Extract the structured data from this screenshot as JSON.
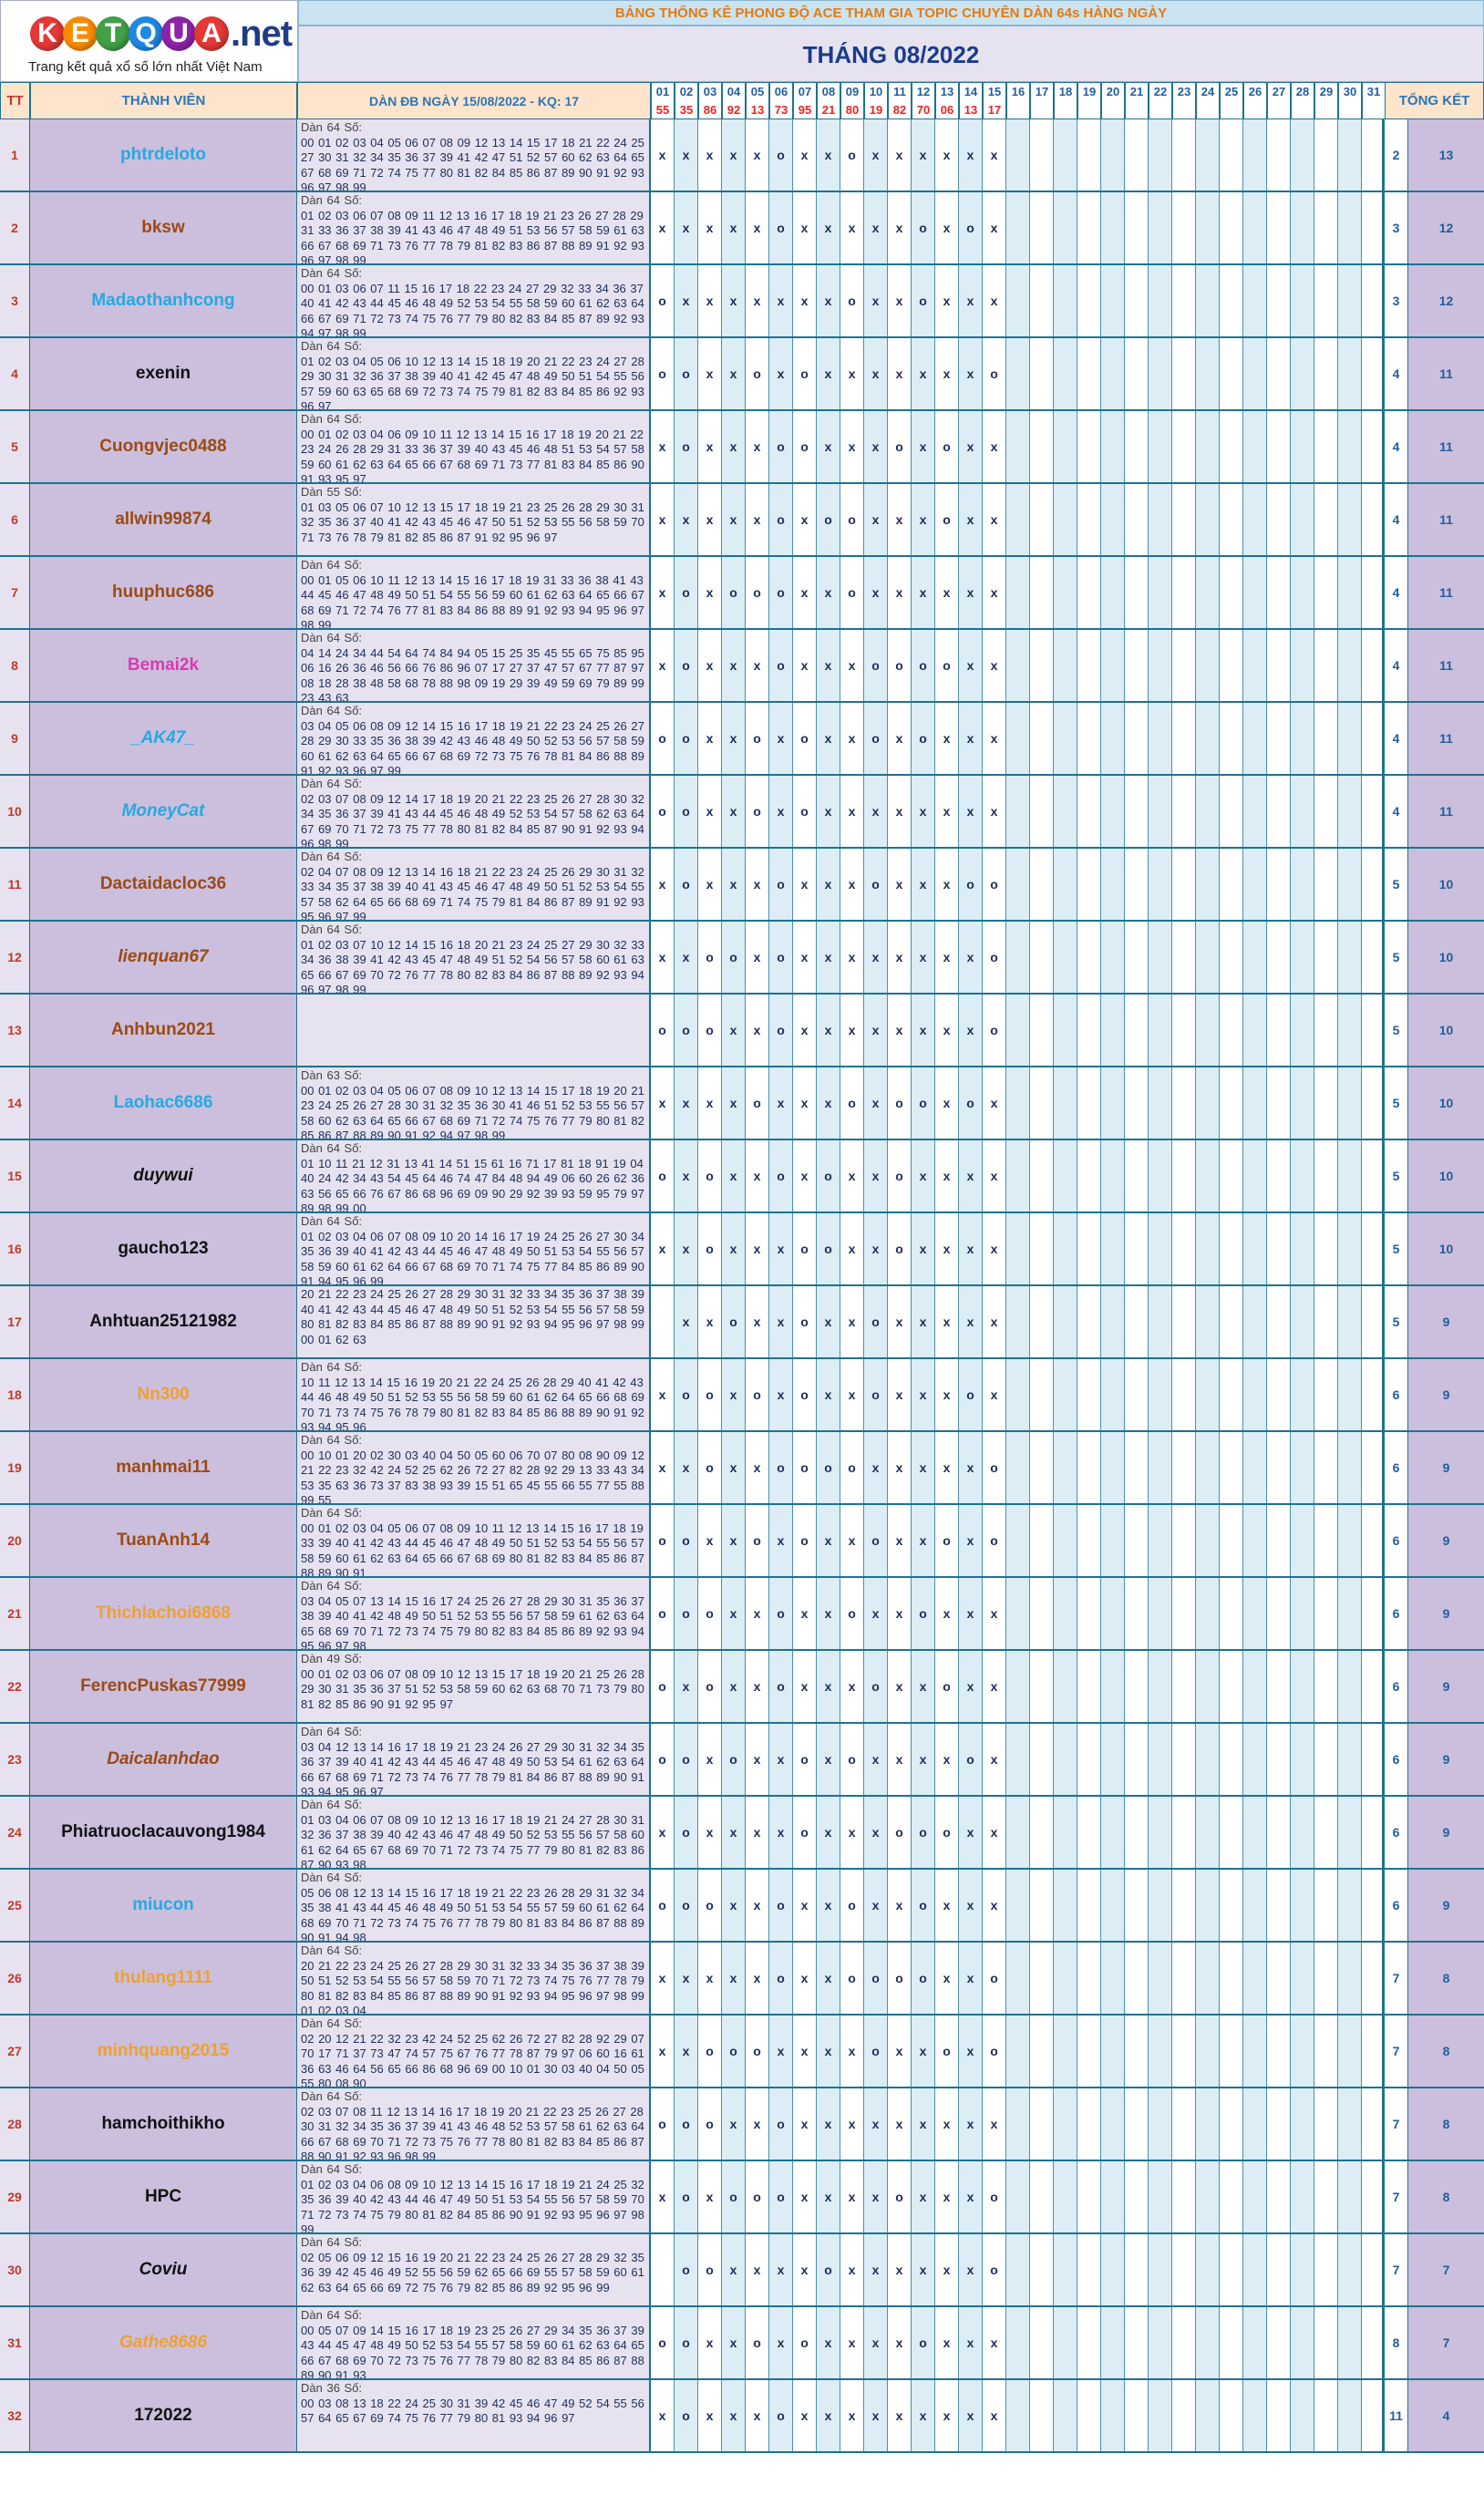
{
  "logo": {
    "letters": [
      "K",
      "E",
      "T",
      "Q",
      "U",
      "A"
    ],
    "suffix": ".net",
    "tagline": "Trang kết quả xổ số lớn nhất Việt Nam"
  },
  "title": "BẢNG THỐNG KÊ PHONG ĐỘ ACE THAM GIA TOPIC CHUYÊN DÀN 64s HÀNG NGÀY",
  "month": "THÁNG 08/2022",
  "headers": {
    "tt": "TT",
    "member": "THÀNH VIÊN",
    "dan": "DÀN ĐB NGÀY 15/08/2022 - KQ: 17",
    "total": "TỔNG KẾT"
  },
  "days": [
    "01",
    "02",
    "03",
    "04",
    "05",
    "06",
    "07",
    "08",
    "09",
    "10",
    "11",
    "12",
    "13",
    "14",
    "15",
    "16",
    "17",
    "18",
    "19",
    "20",
    "21",
    "22",
    "23",
    "24",
    "25",
    "26",
    "27",
    "28",
    "29",
    "30",
    "31"
  ],
  "results": [
    "55",
    "35",
    "86",
    "92",
    "13",
    "73",
    "95",
    "21",
    "80",
    "19",
    "82",
    "70",
    "06",
    "13",
    "17"
  ],
  "colors": {
    "red": "#e22",
    "navy": "#1d2e5a",
    "header_bg": "#fde4cb",
    "row_lilac": "#cbbfdd"
  },
  "rows": [
    {
      "tt": "1",
      "name": "phtrdeloto",
      "color": "#27a9e1",
      "style": "normal",
      "dan": "Dàn 64 Số:\n00 01 02 03 04 05 06 07 08 09 12 13 14 15 17 18 21 22 24 25 27 30 31 32 34 35 36 37 39 41 42 47 51 52 57 60 62 63 64 65 67 68 69 71 72 74 75 77 80 81 82 84 85 86 87 89 90 91 92 93 96 97 98 99",
      "marks": "xxxxxoxxoxxxxxx",
      "t1": "2",
      "t2": "13"
    },
    {
      "tt": "2",
      "name": "bksw",
      "color": "#9c4a14",
      "style": "normal",
      "dan": "Dàn 64 Số:\n01 02 03 06 07 08 09 11 12 13 16 17 18 19 21 23 26 27 28 29 31 33 36 37 38 39 41 43 46 47 48 49 51 53 56 57 58 59 61 63 66 67 68 69 71 73 76 77 78 79 81 82 83 86 87 88 89 91 92 93 96 97 98 99",
      "marks": "xxxxxoxxxxxoxox",
      "t1": "3",
      "t2": "12"
    },
    {
      "tt": "3",
      "name": "Madaothanhcong",
      "color": "#27a9e1",
      "style": "normal",
      "dan": "Dàn 64 Số:\n00 01 03 06 07 11 15 16 17 18 22 23 24 27 29 32 33 34 36 37 40 41 42 43 44 45 46 48 49 52 53 54 55 58 59 60 61 62 63 64 66 67 69 71 72 73 74 75 76 77 79 80 82 83 84 85 87 89 92 93 94 97 98 99",
      "marks": "oxxxxxxxoxxoxxx",
      "t1": "3",
      "t2": "12"
    },
    {
      "tt": "4",
      "name": "exenin",
      "color": "#111",
      "style": "normal",
      "dan": "Dàn 64 Số:\n01 02 03 04 05 06 10 12 13 14 15 18 19 20 21 22 23 24 27 28 29 30 31 32 36 37 38 39 40 41 42 45 47 48 49 50 51 54 55 56 57 59 60 63 65 68 69 72 73 74 75 79 81 82 83 84 85 86 92 93 96 97",
      "marks": "ooxxoxoxxxxxxxo",
      "t1": "4",
      "t2": "11"
    },
    {
      "tt": "5",
      "name": "Cuongvjec0488",
      "color": "#9c4a14",
      "style": "normal",
      "dan": "Dàn 64 Số:\n00 01 02 03 04 06 09 10 11 12 13 14 15 16 17 18 19 20 21 22 23 24 26 28 29 31 33 36 37 39 40 43 45 46 48 51 53 54 57 58 59 60 61 62 63 64 65 66 67 68 69 71 73 77 81 83 84 85 86 90 91 93 95 97",
      "marks": "xoxxxooxxxoxoxx",
      "t1": "4",
      "t2": "11"
    },
    {
      "tt": "6",
      "name": "allwin99874",
      "color": "#9c4a14",
      "style": "normal",
      "dan": "Dàn 55 Số:\n01 03 05 06 07 10 12 13 15 17 18 19 21 23 25 26 28 29 30 31 32 35 36 37 40 41 42 43 45 46 47 50 51 52 53 55 56 58 59 70 71 73 76 78 79 81 82 85 86 87 91 92 95 96 97",
      "marks": "xxxxxoxooxxxoxx",
      "t1": "4",
      "t2": "11"
    },
    {
      "tt": "7",
      "name": "huuphuc686",
      "color": "#9c4a14",
      "style": "normal",
      "dan": "Dàn 64 Số:\n00 01 05 06 10 11 12 13 14 15 16 17 18 19 31 33 36 38 41 43 44 45 46 47 48 49 50 51 54 55 56 59 60 61 62 63 64 65 66 67 68 69 71 72 74 76 77 81 83 84 86 88 89 91 92 93 94 95 96 97 98 99",
      "marks": "xoxoooxxoxxxxxx",
      "t1": "4",
      "t2": "11"
    },
    {
      "tt": "8",
      "name": "Bemai2k",
      "color": "#d63bb0",
      "style": "normal",
      "dan": "Dàn 64 Số:\n04 14 24 34 44 54 64 74 84 94 05 15 25 35 45 55 65 75 85 95 06 16 26 36 46 56 66 76 86 96 07 17 27 37 47 57 67 77 87 97 08 18 28 38 48 58 68 78 88 98 09 19 29 39 49 59 69 79 89 99 23 43 63",
      "marks": "xoxxxoxxxooooxx",
      "t1": "4",
      "t2": "11"
    },
    {
      "tt": "9",
      "name": "_AK47_",
      "color": "#27a9e1",
      "style": "italic",
      "dan": "Dàn 64 Số:\n03 04 05 06 08 09 12 14 15 16 17 18 19 21 22 23 24 25 26 27 28 29 30 33 35 36 38 39 42 43 46 48 49 50 52 53 56 57 58 59 60 61 62 63 64 65 66 67 68 69 72 73 75 76 78 81 84 86 88 89 91 92 93 96 97 99",
      "marks": "ooxxoxoxxoxoxxx",
      "t1": "4",
      "t2": "11"
    },
    {
      "tt": "10",
      "name": "MoneyCat",
      "color": "#27a9e1",
      "style": "italic",
      "dan": "Dàn 64 Số:\n02 03 07 08 09 12 14 17 18 19 20 21 22 23 25 26 27 28 30 32 34 35 36 37 39 41 43 44 45 46 48 49 52 53 54 57 58 62 63 64 67 69 70 71 72 73 75 77 78 80 81 82 84 85 87 90 91 92 93 94 96 98 99",
      "marks": "ooxxoxoxxxxxxxx",
      "t1": "4",
      "t2": "11"
    },
    {
      "tt": "11",
      "name": "Dactaidacloc36",
      "color": "#9c4a14",
      "style": "normal",
      "dan": "Dàn 64 Số:\n02 04 07 08 09 12 13 14 16 18 21 22 23 24 25 26 29 30 31 32 33 34 35 37 38 39 40 41 43 45 46 47 48 49 50 51 52 53 54 55 57 58 62 64 65 66 68 69 71 74 75 79 81 84 86 87 89 91 92 93 95 96 97 99",
      "marks": "xoxxxoxxxoxxxoo",
      "t1": "5",
      "t2": "10"
    },
    {
      "tt": "12",
      "name": "lienquan67",
      "color": "#9c4a14",
      "style": "italic",
      "dan": "Dàn 64 Số:\n01 02 03 07 10 12 14 15 16 18 20 21 23 24 25 27 29 30 32 33 34 36 38 39 41 42 43 45 47 48 49 51 52 54 56 57 58 60 61 63 65 66 67 69 70 72 76 77 78 80 82 83 84 86 87 88 89 92 93 94 96 97 98 99",
      "marks": "xxooxoxxxxxxxxo",
      "t1": "5",
      "t2": "10"
    },
    {
      "tt": "13",
      "name": "Anhbun2021",
      "color": "#9c4a14",
      "style": "normal",
      "dan": "",
      "marks": "oooxxoxxxxxxxxo",
      "t1": "5",
      "t2": "10"
    },
    {
      "tt": "14",
      "name": "Laohac6686",
      "color": "#27a9e1",
      "style": "normal",
      "dan": "Dàn 63 Số:\n00 01 02 03 04 05 06 07 08 09 10 12 13 14 15 17 18 19 20 21 23 24 25 26 27 28 30 31 32 35 36 30 41 46 51 52 53 55 56 57 58 60 62 63 64 65 66 67 68 69 71 72 74 75 76 77 79 80 81 82 85 86 87 88 89 90 91 92 94 97 98 99",
      "marks": "xxxxoxxxoxooxox",
      "t1": "5",
      "t2": "10"
    },
    {
      "tt": "15",
      "name": "duywui",
      "color": "#111",
      "style": "italic",
      "dan": "Dàn 64 Số:\n01 10 11 21 12 31 13 41 14 51 15 61 16 71 17 81 18 91 19 04 40 24 42 34 43 54 45 64 46 74 47 84 48 94 49 06 60 26 62 36 63 56 65 66 76 67 86 68 96 69 09 90 29 92 39 93 59 95 79 97 89 98 99 00",
      "marks": "oxoxxoxoxxoxxxx",
      "t1": "5",
      "t2": "10"
    },
    {
      "tt": "16",
      "name": "gaucho123",
      "color": "#111",
      "style": "normal",
      "dan": "Dàn 64 Số:\n01 02 03 04 06 07 08 09 10 20 14 16 17 19 24 25 26 27 30 34 35 36 39 40 41 42 43 44 45 46 47 48 49 50 51 53 54 55 56 57 58 59 60 61 62 64 66 67 68 69 70 71 74 75 77 84 85 86 89 90 91 94 95 96 99",
      "marks": "xxoxxxooxxoxxxx",
      "t1": "5",
      "t2": "10"
    },
    {
      "tt": "17",
      "name": "Anhtuan25121982",
      "color": "#111",
      "style": "normal",
      "dan": "20 21 22 23 24 25 26 27 28 29 30 31 32 33 34 35 36 37 38 39 40 41 42 43 44 45 46 47 48 49 50 51 52 53 54 55 56 57 58 59 80 81 82 83 84 85 86 87 88 89 90 91 92 93 94 95 96 97 98 99 00 01 62 63",
      "marks": " xxoxxoxxoxxxxx",
      "t1": "5",
      "t2": "9"
    },
    {
      "tt": "18",
      "name": "Nn300",
      "color": "#f0a030",
      "style": "normal",
      "dan": "Dàn 64 Số:\n10 11 12 13 14 15 16 19 20 21 22 24 25 26 28 29 40 41 42 43 44 46 48 49 50 51 52 53 55 56 58 59 60 61 62 64 65 66 68 69 70 71 73 74 75 76 78 79 80 81 82 83 84 85 86 88 89 90 91 92 93 94 95 96",
      "marks": "xooxoxoxxoxxxox",
      "t1": "6",
      "t2": "9"
    },
    {
      "tt": "19",
      "name": "manhmai11",
      "color": "#9c4a14",
      "style": "normal",
      "dan": "Dàn 64 Số:\n00 10 01 20 02 30 03 40 04 50 05 60 06 70 07 80 08 90 09 12 21 22 23 32 42 24 52 25 62 26 72 27 82 28 92 29 13 33 43 34 53 35 63 36 73 37 83 38 93 39 15 51 65 45 55 66 55 77 55 88 99 55",
      "marks": "xxoxxooooxxxxxo",
      "t1": "6",
      "t2": "9"
    },
    {
      "tt": "20",
      "name": "TuanAnh14",
      "color": "#9c4a14",
      "style": "normal",
      "dan": "Dàn 64 Số:\n00 01 02 03 04 05 06 07 08 09 10 11 12 13 14 15 16 17 18 19 33 39 40 41 42 43 44 45 46 47 48 49 50 51 52 53 54 55 56 57 58 59 60 61 62 63 64 65 66 67 68 69 80 81 82 83 84 85 86 87 88 89 90 91",
      "marks": "ooxxoxoxxoxxoxo",
      "t1": "6",
      "t2": "9"
    },
    {
      "tt": "21",
      "name": "Thichlachoi6868",
      "color": "#f0a030",
      "style": "normal",
      "dan": "Dàn 64 Số:\n03 04 05 07 13 14 15 16 17 24 25 26 27 28 29 30 31 35 36 37 38 39 40 41 42 48 49 50 51 52 53 55 56 57 58 59 61 62 63 64 65 68 69 70 71 72 73 74 75 79 80 82 83 84 85 86 89 92 93 94 95 96 97 98",
      "marks": "oooxxoxxoxxoxxx",
      "t1": "6",
      "t2": "9"
    },
    {
      "tt": "22",
      "name": "FerencPuskas77999",
      "color": "#9c4a14",
      "style": "normal",
      "dan": "Dàn 49 Số:\n00 01 02 03 06 07 08 09 10 12 13 15 17 18 19 20 21 25 26 28 29 30 31 35 36 37 51 52 53 58 59 60 62 63 68 70 71 73 79 80 81 82 85 86 90 91 92 95 97",
      "marks": "oxoxxoxxxoxxoxx",
      "t1": "6",
      "t2": "9"
    },
    {
      "tt": "23",
      "name": "Daicalanhdao",
      "color": "#9c4a14",
      "style": "italic",
      "dan": "Dàn 64 Số:\n03 04 12 13 14 16 17 18 19 21 23 24 26 27 29 30 31 32 34 35 36 37 39 40 41 42 43 44 45 46 47 48 49 50 53 54 61 62 63 64 66 67 68 69 71 72 73 74 76 77 78 79 81 84 86 87 88 89 90 91 93 94 95 96 97",
      "marks": "ooxoxxoxoxxxxox",
      "t1": "6",
      "t2": "9"
    },
    {
      "tt": "24",
      "name": "Phiatruoclacauvong1984",
      "color": "#111",
      "style": "normal",
      "dan": "Dàn 64 Số:\n01 03 04 06 07 08 09 10 12 13 16 17 18 19 21 24 27 28 30 31 32 36 37 38 39 40 42 43 46 47 48 49 50 52 53 55 56 57 58 60 61 62 64 65 67 68 69 70 71 72 73 74 75 77 79 80 81 82 83 86 87 90 93 98",
      "marks": "xoxxxxoxxxoooxx",
      "t1": "6",
      "t2": "9"
    },
    {
      "tt": "25",
      "name": "miucon",
      "color": "#27a9e1",
      "style": "normal",
      "dan": "Dàn 64 Số:\n05 06 08 12 13 14 15 16 17 18 19 21 22 23 26 28 29 31 32 34 35 38 41 43 44 45 46 48 49 50 51 53 54 55 57 59 60 61 62 64 68 69 70 71 72 73 74 75 76 77 78 79 80 81 83 84 86 87 88 89 90 91 94 98",
      "marks": "oooxxoxxoxxoxxx",
      "t1": "6",
      "t2": "9"
    },
    {
      "tt": "26",
      "name": "thulang1111",
      "color": "#f0a030",
      "style": "normal",
      "dan": "Dàn 64 Số:\n20 21 22 23 24 25 26 27 28 29 30 31 32 33 34 35 36 37 38 39 50 51 52 53 54 55 56 57 58 59 70 71 72 73 74 75 76 77 78 79 80 81 82 83 84 85 86 87 88 89 90 91 92 93 94 95 96 97 98 99 01 02 03 04",
      "marks": "xxxxxoxxooooxxo",
      "t1": "7",
      "t2": "8"
    },
    {
      "tt": "27",
      "name": "minhquang2015",
      "color": "#f0a030",
      "style": "normal",
      "dan": "Dàn 64 Số:\n02 20 12 21 22 32 23 42 24 52 25 62 26 72 27 82 28 92 29 07 70 17 71 37 73 47 74 57 75 67 76 77 78 87 79 97 06 60 16 61 36 63 46 64 56 65 66 86 68 96 69 00 10 01 30 03 40 04 50 05 55 80 08 90",
      "marks": "xxoooxxxxoxxoxo",
      "t1": "7",
      "t2": "8"
    },
    {
      "tt": "28",
      "name": "hamchoithikho",
      "color": "#111",
      "style": "normal",
      "dan": "Dàn 64 Số:\n02 03 07 08 11 12 13 14 16 17 18 19 20 21 22 23 25 26 27 28 30 31 32 34 35 36 37 39 41 43 46 48 52 53 57 58 61 62 63 64 66 67 68 69 70 71 72 73 75 76 77 78 80 81 82 83 84 85 86 87 88 90 91 92 93 96 98 99",
      "marks": "oooxxoxxxxxxxxx",
      "t1": "7",
      "t2": "8"
    },
    {
      "tt": "29",
      "name": "HPC",
      "color": "#111",
      "style": "normal",
      "dan": "Dàn 64 Số:\n01 02 03 04 06 08 09 10 12 13 14 15 16 17 18 19 21 24 25 32 35 36 39 40 42 43 44 46 47 49 50 51 53 54 55 56 57 58 59 70 71 72 73 74 75 79 80 81 82 84 85 86 90 91 92 93 95 96 97 98 99",
      "marks": "xoxoooxxxxoxxxo",
      "t1": "7",
      "t2": "8"
    },
    {
      "tt": "30",
      "name": "Coviu",
      "color": "#111",
      "style": "italic",
      "dan": "Dàn 64 Số:\n02 05 06 09 12 15 16 19 20 21 22 23 24 25 26 27 28 29 32 35 36 39 42 45 46 49 52 55 56 59 62 65 66 69 55 57 58 59 60 61 62 63 64 65 66 69 72 75 76 79 82 85 86 89 92 95 96 99",
      "marks": " ooxxxxoxxxxxxo",
      "t1": "7",
      "t2": "7"
    },
    {
      "tt": "31",
      "name": "Gathe8686",
      "color": "#f0a030",
      "style": "italic",
      "dan": "Dàn 64 Số:\n00 05 07 09 14 15 16 17 18 19 23 25 26 27 29 34 35 36 37 39 43 44 45 47 48 49 50 52 53 54 55 57 58 59 60 61 62 63 64 65 66 67 68 69 70 72 73 75 76 77 78 79 80 82 83 84 85 86 87 88 89 90 91 93",
      "marks": "ooxxoxoxxxxoxxx",
      "t1": "8",
      "t2": "7"
    },
    {
      "tt": "32",
      "name": "172022",
      "color": "#111",
      "style": "normal",
      "dan": "Dàn 36 Số:\n00 03 08 13 18 22 24 25 30 31 39 42 45 46 47 49 52 54 55 56 57 64 65 67 69 74 75 76 77 79 80 81 93 94 96 97",
      "marks": "xoxxxoxxxxxxxxx",
      "t1": "11",
      "t2": "4"
    }
  ]
}
